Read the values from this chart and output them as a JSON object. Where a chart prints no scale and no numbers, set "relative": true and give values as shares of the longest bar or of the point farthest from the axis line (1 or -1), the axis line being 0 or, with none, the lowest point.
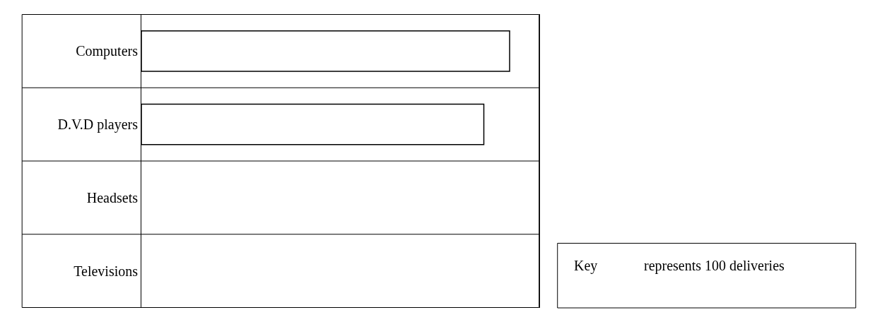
{
  "chart_data": {
    "type": "bar",
    "orientation": "horizontal",
    "relative": true,
    "categories": [
      "Computers",
      "D.V.D players",
      "Headsets",
      "Televisions"
    ],
    "values": [
      1,
      0.93,
      null,
      null
    ],
    "color": "#ffffff",
    "annotations": [
      "Key",
      "represents 100 deliveries"
    ],
    "legend": false
  }
}
